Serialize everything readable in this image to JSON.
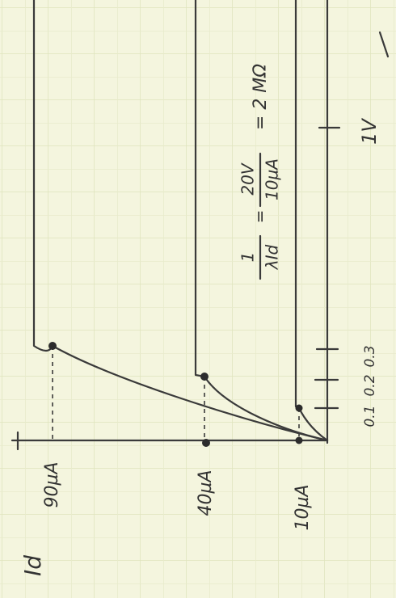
{
  "labels": {
    "current_axis": "Id",
    "currents": [
      "90µA",
      "40µA",
      "10µA"
    ],
    "voltages": [
      "0.1",
      "0.2",
      "0.3"
    ],
    "voltage_end": "1V"
  },
  "formula": [
    "1",
    "λId",
    "=",
    "20V",
    "10µA",
    "= 2 MΩ"
  ]
}
